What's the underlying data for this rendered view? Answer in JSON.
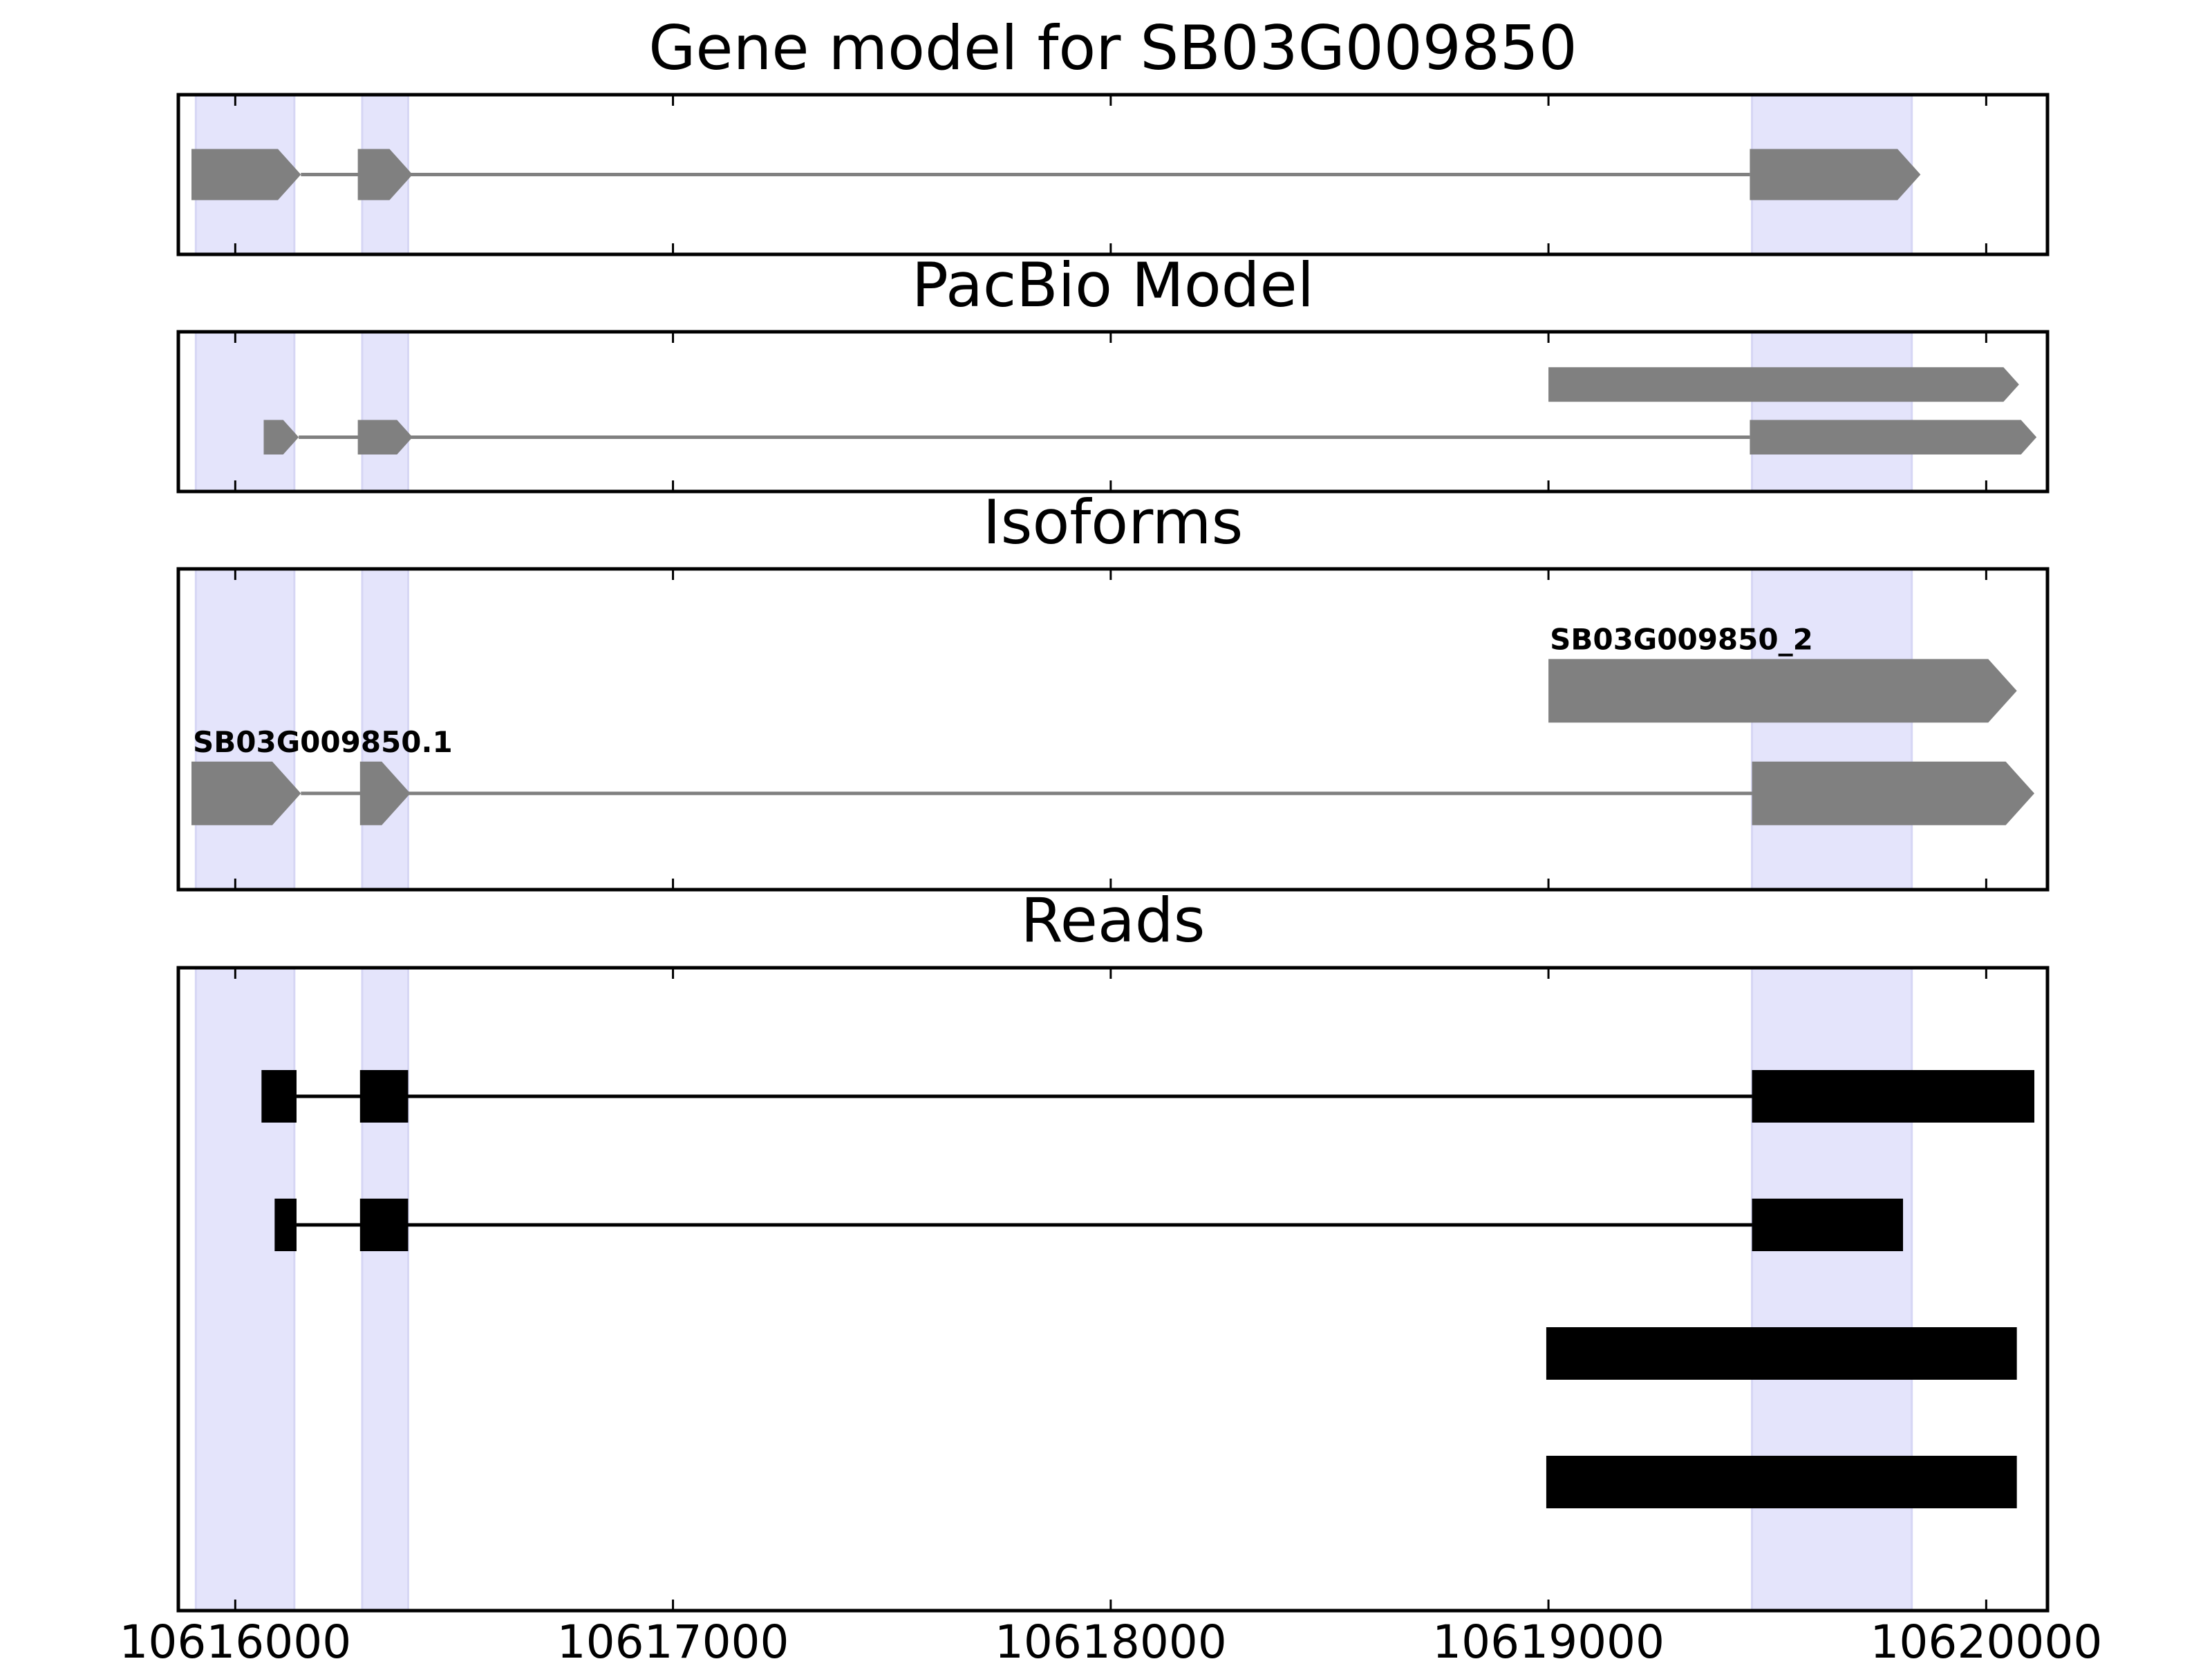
{
  "chart_data": {
    "type": "gene-track",
    "xlim": [
      10615870,
      10620140
    ],
    "x_ticks": [
      10616000,
      10617000,
      10618000,
      10619000,
      10620000
    ],
    "x_tick_labels": [
      "10616000",
      "10617000",
      "10618000",
      "10619000",
      "10620000"
    ],
    "highlight_color": "#e4e4fb",
    "feature_color": "#808080",
    "read_color": "#000000",
    "highlight_regions": [
      [
        10615910,
        10616135
      ],
      [
        10616290,
        10616395
      ],
      [
        10619465,
        10619830
      ]
    ],
    "panels": [
      {
        "id": "gene-model",
        "title": "Gene model for SB03G009850",
        "tracks": [
          {
            "row": 0.5,
            "exons": [
              [
                10615900,
                10616150
              ],
              [
                10616280,
                10616405
              ],
              [
                10619460,
                10619850
              ]
            ],
            "strand": "+"
          }
        ]
      },
      {
        "id": "pacbio-model",
        "title": "PacBio Model",
        "tracks": [
          {
            "row": 0.33,
            "exons": [
              [
                10619000,
                10620075
              ]
            ],
            "strand": "+"
          },
          {
            "row": 0.66,
            "exons": [
              [
                10616065,
                10616145
              ],
              [
                10616280,
                10616405
              ],
              [
                10619460,
                10620115
              ]
            ],
            "strand": "+"
          }
        ]
      },
      {
        "id": "isoforms",
        "title": "Isoforms",
        "tracks": [
          {
            "row": 0.38,
            "label": "SB03G009850_2",
            "exons": [
              [
                10619000,
                10620070
              ]
            ],
            "strand": "+"
          },
          {
            "row": 0.7,
            "label": "SB03G009850.1",
            "exons": [
              [
                10615900,
                10616150
              ],
              [
                10616285,
                10616400
              ],
              [
                10619465,
                10620110
              ]
            ],
            "strand": "+"
          }
        ]
      },
      {
        "id": "reads",
        "title": "Reads",
        "tracks": [
          {
            "row": 0.2,
            "exons": [
              [
                10616060,
                10616140
              ],
              [
                10616285,
                10616395
              ],
              [
                10619465,
                10620110
              ]
            ]
          },
          {
            "row": 0.4,
            "exons": [
              [
                10616090,
                10616140
              ],
              [
                10616285,
                10616395
              ],
              [
                10619465,
                10619810
              ]
            ]
          },
          {
            "row": 0.6,
            "exons": [
              [
                10618995,
                10620070
              ]
            ]
          },
          {
            "row": 0.8,
            "exons": [
              [
                10618995,
                10620070
              ]
            ]
          }
        ]
      }
    ]
  }
}
